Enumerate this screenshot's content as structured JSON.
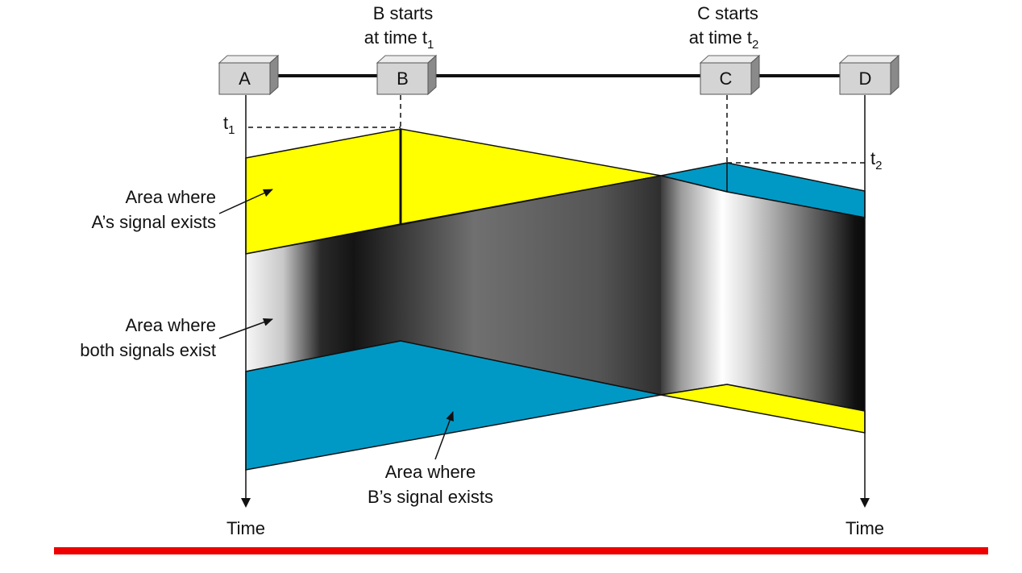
{
  "stations": [
    {
      "id": "A",
      "label": "A"
    },
    {
      "id": "B",
      "label": "B"
    },
    {
      "id": "C",
      "label": "C"
    },
    {
      "id": "D",
      "label": "D"
    }
  ],
  "annotations": {
    "b_start": {
      "line1": "B starts",
      "line2_text": "at time t",
      "line2_sub": "1"
    },
    "c_start": {
      "line1": "C starts",
      "line2_text": "at time t",
      "line2_sub": "2"
    },
    "t1": {
      "text": "t",
      "sub": "1"
    },
    "t2": {
      "text": "t",
      "sub": "2"
    }
  },
  "areas": {
    "a_signal": {
      "line1": "Area where",
      "line2": "A’s signal exists"
    },
    "both_signals": {
      "line1": "Area where",
      "line2": "both signals exist"
    },
    "b_signal": {
      "line1": "Area where",
      "line2": "B’s signal exists"
    }
  },
  "axes": {
    "left_time": "Time",
    "right_time": "Time"
  },
  "colors": {
    "a_signal": "#ffff00",
    "b_signal": "#0099c6",
    "box_face": "#d4d4d4",
    "box_top": "#ececec",
    "box_side": "#8a8a8a",
    "accent_rule": "#ee0000"
  }
}
